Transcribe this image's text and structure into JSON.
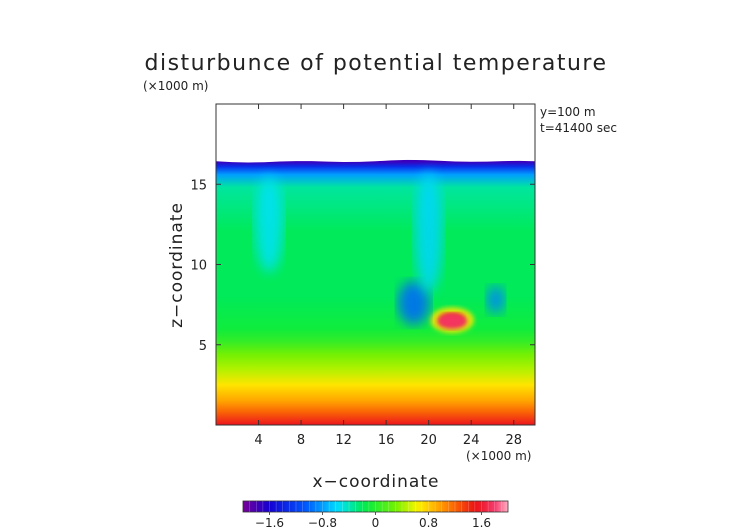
{
  "chart_data": {
    "type": "heatmap",
    "title": "disturbunce of potential temperature",
    "xlabel": "x−coordinate",
    "ylabel": "z−coordinate",
    "x_unit": "(×1000 m)",
    "y_unit": "(×1000 m)",
    "annotations": [
      "y=100 m",
      "t=41400 sec"
    ],
    "xlim": [
      0,
      30
    ],
    "ylim": [
      0,
      20
    ],
    "x_ticks": [
      4,
      8,
      12,
      16,
      20,
      24,
      28
    ],
    "y_ticks": [
      5,
      10,
      15
    ],
    "colorbar": {
      "range": [
        -2.0,
        2.0
      ],
      "ticks": [
        -1.6,
        -0.8,
        0,
        0.8,
        1.6
      ],
      "tick_labels": [
        "−1.6",
        "−0.8",
        "0",
        "0.8",
        "1.6"
      ]
    },
    "data_top_z": 16.4,
    "field_rows": [
      {
        "z": 0.0,
        "v": 1.55
      },
      {
        "z": 0.8,
        "v": 1.2
      },
      {
        "z": 1.5,
        "v": 0.95
      },
      {
        "z": 2.5,
        "v": 0.7
      },
      {
        "z": 3.5,
        "v": 0.45
      },
      {
        "z": 4.4,
        "v": 0.3
      },
      {
        "z": 5.2,
        "v": 0.05
      },
      {
        "z": 6.0,
        "v": -0.1
      },
      {
        "z": 8.0,
        "v": -0.2
      },
      {
        "z": 12.0,
        "v": -0.2
      },
      {
        "z": 14.8,
        "v": -0.35
      },
      {
        "z": 15.6,
        "v": -0.8
      },
      {
        "z": 16.1,
        "v": -1.3
      },
      {
        "z": 16.4,
        "v": -1.75
      }
    ],
    "features": [
      {
        "name": "warm-bubble",
        "x": 22.2,
        "z": 6.6,
        "v": 1.5
      },
      {
        "name": "cool-ring-left",
        "x": 18.6,
        "z": 7.6,
        "v": -1.0
      },
      {
        "name": "cool-ring-right",
        "x": 26.3,
        "z": 7.8,
        "v": -0.9
      },
      {
        "name": "cool-plume-center",
        "x": 20.0,
        "z": 12.0,
        "v": -0.6
      },
      {
        "name": "cool-plume-left",
        "x": 5.0,
        "z": 12.5,
        "v": -0.55
      }
    ]
  }
}
